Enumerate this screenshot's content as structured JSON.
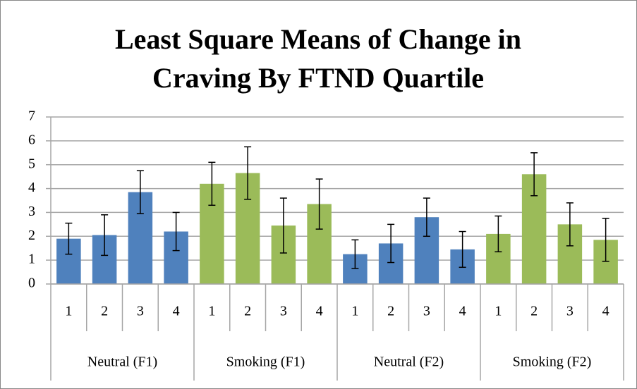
{
  "chart_data": {
    "type": "bar",
    "title": "Least Square Means of Change in Craving By FTND Quartile",
    "categories": [
      "1",
      "2",
      "3",
      "4"
    ],
    "groups": [
      {
        "name": "Neutral (F1)",
        "color": "#4f81bd",
        "values": [
          1.9,
          2.05,
          3.85,
          2.2
        ],
        "errors": [
          0.65,
          0.85,
          0.9,
          0.8
        ]
      },
      {
        "name": "Smoking (F1)",
        "color": "#9bbb59",
        "values": [
          4.2,
          4.65,
          2.45,
          3.35
        ],
        "errors": [
          0.9,
          1.1,
          1.15,
          1.05
        ]
      },
      {
        "name": "Neutral (F2)",
        "color": "#4f81bd",
        "values": [
          1.25,
          1.7,
          2.8,
          1.45
        ],
        "errors": [
          0.6,
          0.8,
          0.8,
          0.75
        ]
      },
      {
        "name": "Smoking (F2)",
        "color": "#9bbb59",
        "values": [
          2.1,
          4.6,
          2.5,
          1.85
        ],
        "errors": [
          0.75,
          0.9,
          0.9,
          0.9
        ]
      }
    ],
    "ylim": [
      0,
      7
    ],
    "yticks": [
      0,
      1,
      2,
      3,
      4,
      5,
      6,
      7
    ],
    "grid": true
  }
}
